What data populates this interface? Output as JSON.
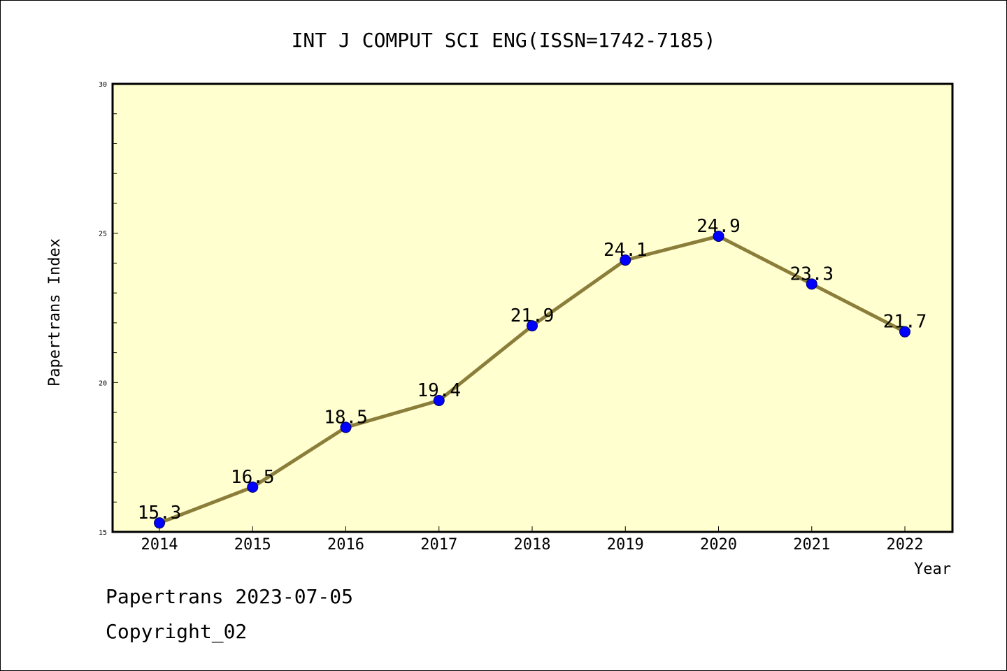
{
  "footer": {
    "line1": "Papertrans 2023-07-05",
    "line2": "Copyright_02"
  },
  "chart_data": {
    "type": "line",
    "title": "INT J COMPUT SCI ENG(ISSN=1742-7185)",
    "xlabel": "Year",
    "ylabel": "Papertrans Index",
    "categories": [
      "2014",
      "2015",
      "2016",
      "2017",
      "2018",
      "2019",
      "2020",
      "2021",
      "2022"
    ],
    "values": [
      15.3,
      16.5,
      18.5,
      19.4,
      21.9,
      24.1,
      24.9,
      23.3,
      21.7
    ],
    "data_labels": [
      "15.3",
      "16.5",
      "18.5",
      "19.4",
      "21.9",
      "24.1",
      "24.9",
      "23.3",
      "21.7"
    ],
    "ylim": [
      15,
      30
    ],
    "yticks": [
      "15",
      "20",
      "25",
      "30"
    ],
    "grid": false,
    "legend": "none",
    "colors": {
      "plot_background": "#ffffd0",
      "line": "#8b7d3a",
      "marker": "#0000ff"
    }
  }
}
